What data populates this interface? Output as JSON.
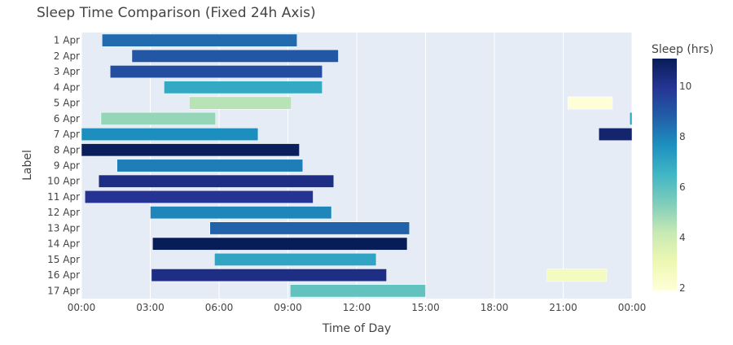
{
  "chart_data": {
    "type": "bar",
    "orientation": "horizontal",
    "title": "Sleep Time Comparison (Fixed 24h Axis)",
    "xlabel": "Time of Day",
    "ylabel": "Label",
    "x_unit": "hours",
    "xlim": [
      0,
      24
    ],
    "x_ticks": [
      {
        "value": 0,
        "label": "00:00"
      },
      {
        "value": 3,
        "label": "03:00"
      },
      {
        "value": 6,
        "label": "06:00"
      },
      {
        "value": 9,
        "label": "09:00"
      },
      {
        "value": 12,
        "label": "12:00"
      },
      {
        "value": 15,
        "label": "15:00"
      },
      {
        "value": 18,
        "label": "18:00"
      },
      {
        "value": 21,
        "label": "21:00"
      },
      {
        "value": 24,
        "label": "00:00"
      }
    ],
    "categories": [
      "1 Apr",
      "2 Apr",
      "3 Apr",
      "4 Apr",
      "5 Apr",
      "6 Apr",
      "7 Apr",
      "8 Apr",
      "9 Apr",
      "10 Apr",
      "11 Apr",
      "12 Apr",
      "13 Apr",
      "14 Apr",
      "15 Apr",
      "16 Apr",
      "17 Apr"
    ],
    "segments": [
      {
        "label": "1 Apr",
        "start": 0.9,
        "end": 9.4,
        "sleep_hrs": 8.5
      },
      {
        "label": "2 Apr",
        "start": 2.2,
        "end": 11.2,
        "sleep_hrs": 9.0
      },
      {
        "label": "3 Apr",
        "start": 1.25,
        "end": 10.5,
        "sleep_hrs": 9.25
      },
      {
        "label": "4 Apr",
        "start": 3.6,
        "end": 10.5,
        "sleep_hrs": 6.9
      },
      {
        "label": "5 Apr",
        "start": 4.7,
        "end": 9.15,
        "sleep_hrs": 4.45
      },
      {
        "label": "5 Apr",
        "start": 21.2,
        "end": 23.15,
        "sleep_hrs": 1.95
      },
      {
        "label": "6 Apr",
        "start": 0.85,
        "end": 5.85,
        "sleep_hrs": 5.0
      },
      {
        "label": "6 Apr",
        "start": 23.9,
        "end": 24.0,
        "sleep_hrs": 7.0
      },
      {
        "label": "7 Apr",
        "start": 0.0,
        "end": 7.7,
        "sleep_hrs": 7.7
      },
      {
        "label": "7 Apr",
        "start": 22.55,
        "end": 24.0,
        "sleep_hrs": 10.7
      },
      {
        "label": "8 Apr",
        "start": 0.0,
        "end": 9.5,
        "sleep_hrs": 11.0
      },
      {
        "label": "9 Apr",
        "start": 1.55,
        "end": 9.65,
        "sleep_hrs": 8.1
      },
      {
        "label": "10 Apr",
        "start": 0.75,
        "end": 11.0,
        "sleep_hrs": 10.25
      },
      {
        "label": "11 Apr",
        "start": 0.15,
        "end": 10.1,
        "sleep_hrs": 9.95
      },
      {
        "label": "12 Apr",
        "start": 3.0,
        "end": 10.9,
        "sleep_hrs": 7.9
      },
      {
        "label": "13 Apr",
        "start": 5.6,
        "end": 14.3,
        "sleep_hrs": 8.7
      },
      {
        "label": "14 Apr",
        "start": 3.1,
        "end": 14.2,
        "sleep_hrs": 11.1
      },
      {
        "label": "15 Apr",
        "start": 5.8,
        "end": 12.85,
        "sleep_hrs": 7.05
      },
      {
        "label": "16 Apr",
        "start": 3.05,
        "end": 13.3,
        "sleep_hrs": 10.25
      },
      {
        "label": "16 Apr",
        "start": 20.3,
        "end": 22.9,
        "sleep_hrs": 2.6
      },
      {
        "label": "17 Apr",
        "start": 9.1,
        "end": 15.0,
        "sleep_hrs": 5.9
      }
    ],
    "colorbar": {
      "title": "Sleep (hrs)",
      "range": [
        1.9,
        11.1
      ],
      "ticks": [
        2,
        4,
        6,
        8,
        10
      ],
      "colorscale": "YlGnBu",
      "stops": [
        "#ffffd9",
        "#edf8b1",
        "#c7e9b4",
        "#7fcdbb",
        "#41b6c4",
        "#1d91c0",
        "#225ea8",
        "#253494",
        "#081d58"
      ]
    },
    "grid": true,
    "colors": {
      "plot_background": "#e5ecf6",
      "grid": "#ffffff",
      "text": "#444444"
    }
  }
}
